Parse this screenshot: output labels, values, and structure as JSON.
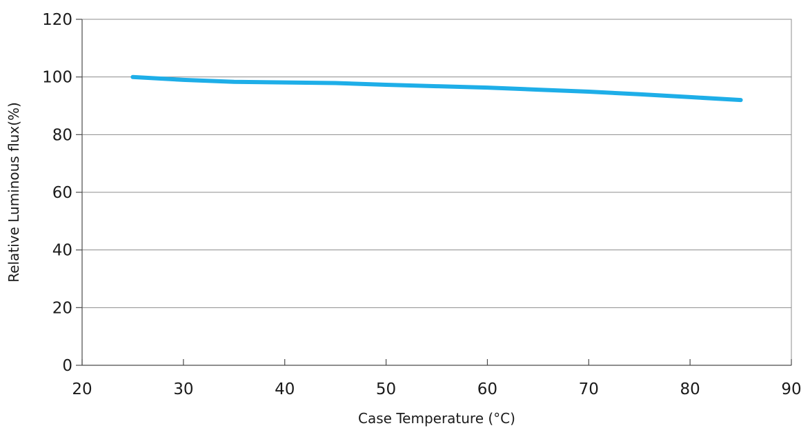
{
  "chart_data": {
    "type": "line",
    "title": "",
    "xlabel": "Case Temperature (°C)",
    "ylabel": "Relative Luminous flux(%)",
    "xlim": [
      20,
      90
    ],
    "ylim": [
      0,
      120
    ],
    "x_ticks": [
      20,
      30,
      40,
      50,
      60,
      70,
      80,
      90
    ],
    "y_ticks": [
      0,
      20,
      40,
      60,
      80,
      100,
      120
    ],
    "grid": "horizontal",
    "legend": "none",
    "series": [
      {
        "color": "#1eaee8",
        "x": [
          25,
          30,
          35,
          40,
          45,
          50,
          55,
          60,
          65,
          70,
          75,
          80,
          85
        ],
        "y": [
          100,
          99,
          98.3,
          98.1,
          97.9,
          97.3,
          96.8,
          96.3,
          95.6,
          94.9,
          94.0,
          93.0,
          92.0
        ]
      }
    ]
  }
}
